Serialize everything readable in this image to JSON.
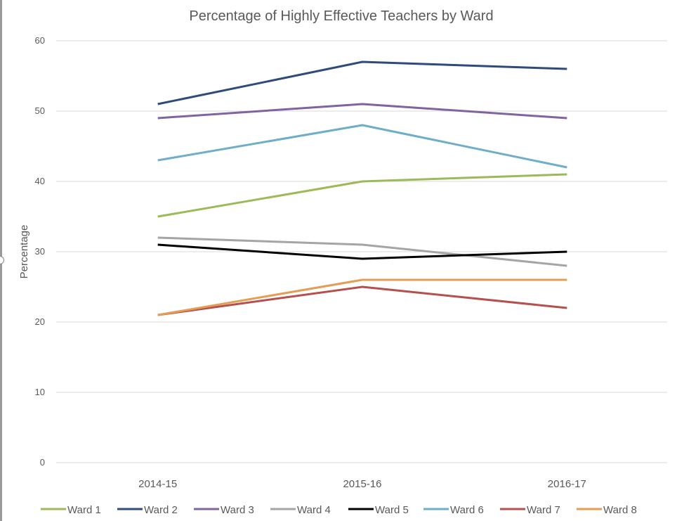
{
  "chart_data": {
    "type": "line",
    "title": "Percentage of Highly Effective Teachers by Ward",
    "xlabel": "",
    "ylabel": "Percentage",
    "categories": [
      "2014-15",
      "2015-16",
      "2016-17"
    ],
    "ylim": [
      0,
      60
    ],
    "yticks": [
      0,
      10,
      20,
      30,
      40,
      50,
      60
    ],
    "grid": true,
    "legend": "bottom",
    "series": [
      {
        "name": "Ward 1",
        "color": "#9bbb59",
        "values": [
          35,
          40,
          41
        ]
      },
      {
        "name": "Ward 2",
        "color": "#2f4b7c",
        "values": [
          51,
          57,
          56
        ]
      },
      {
        "name": "Ward 3",
        "color": "#8064a2",
        "values": [
          49,
          51,
          49
        ]
      },
      {
        "name": "Ward 4",
        "color": "#a5a5a5",
        "values": [
          32,
          31,
          28
        ]
      },
      {
        "name": "Ward 5",
        "color": "#000000",
        "values": [
          31,
          29,
          30
        ]
      },
      {
        "name": "Ward 6",
        "color": "#6fadc9",
        "values": [
          43,
          48,
          42
        ]
      },
      {
        "name": "Ward 7",
        "color": "#b5504d",
        "values": [
          21,
          25,
          22
        ]
      },
      {
        "name": "Ward 8",
        "color": "#e59c55",
        "values": [
          21,
          26,
          26
        ]
      }
    ]
  }
}
